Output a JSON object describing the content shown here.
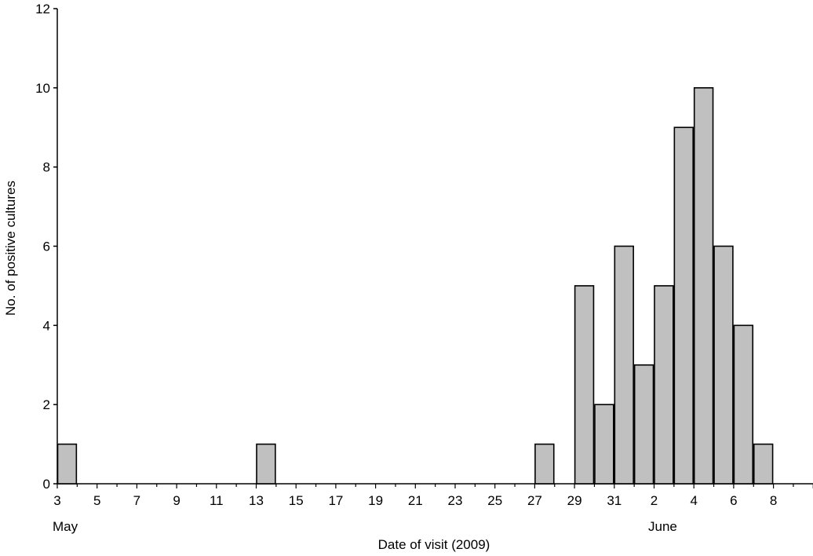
{
  "chart_data": {
    "type": "bar",
    "title": "",
    "xlabel": "Date of visit (2009)",
    "ylabel": "No. of positive cultures",
    "ylim": [
      0,
      12
    ],
    "yticks": [
      0,
      2,
      4,
      6,
      8,
      10,
      12
    ],
    "xticks": [
      "3",
      "5",
      "7",
      "9",
      "11",
      "13",
      "15",
      "17",
      "19",
      "21",
      "23",
      "25",
      "27",
      "29",
      "31",
      "2",
      "4",
      "6",
      "8"
    ],
    "month_labels": [
      "May",
      "June"
    ],
    "grid": false,
    "legend": false,
    "bar_color": "#c0c0c0",
    "edge_color": "#000000",
    "categories": [
      "3 May",
      "13 May",
      "27 May",
      "29 May",
      "30 May",
      "31 May",
      "1 June",
      "2 June",
      "3 June",
      "4 June",
      "5 June",
      "6 June",
      "7 June"
    ],
    "values": [
      1,
      1,
      1,
      5,
      2,
      6,
      3,
      5,
      9,
      10,
      6,
      4,
      1
    ]
  }
}
